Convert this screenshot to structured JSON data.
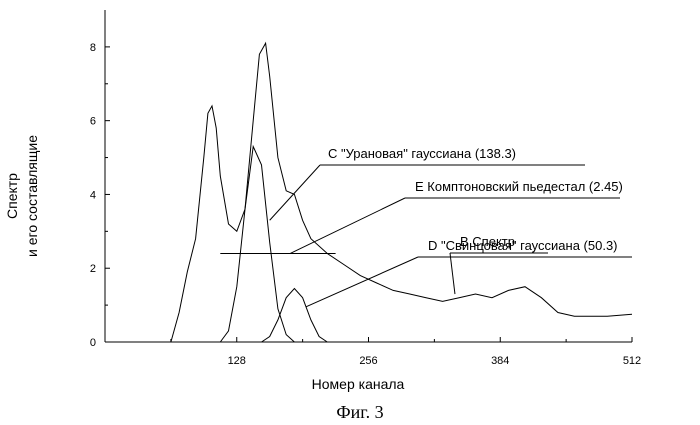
{
  "chart_data": {
    "type": "line",
    "xlabel": "Номер канала",
    "ylabel_lines": [
      "Спектр",
      "и его составлящие"
    ],
    "caption": "Фиг. 3",
    "xlim": [
      0,
      512
    ],
    "ylim": [
      0,
      9
    ],
    "x_ticks": [
      128,
      256,
      384,
      512
    ],
    "y_ticks": [
      0,
      2,
      4,
      6,
      8
    ],
    "grid": false,
    "series": [
      {
        "name": "В Спектр",
        "x": [
          64,
          72,
          80,
          88,
          96,
          100,
          104,
          108,
          112,
          120,
          128,
          136,
          144,
          150,
          156,
          160,
          168,
          176,
          184,
          192,
          200,
          216,
          232,
          248,
          264,
          280,
          296,
          312,
          328,
          344,
          360,
          376,
          392,
          408,
          424,
          440,
          456,
          472,
          488,
          512
        ],
        "y": [
          0,
          0.8,
          1.9,
          2.8,
          5.0,
          6.2,
          6.4,
          5.8,
          4.5,
          3.2,
          3.0,
          3.6,
          6.0,
          7.8,
          8.1,
          7.2,
          5.0,
          4.1,
          4.0,
          3.3,
          2.8,
          2.4,
          2.1,
          1.8,
          1.6,
          1.4,
          1.3,
          1.2,
          1.1,
          1.2,
          1.3,
          1.2,
          1.4,
          1.5,
          1.2,
          0.8,
          0.7,
          0.7,
          0.7,
          0.75
        ]
      },
      {
        "name": "С \"Урановая\" гауссиана (138.3)",
        "x": [
          112,
          120,
          128,
          136,
          144,
          152,
          160,
          168,
          176,
          184
        ],
        "y": [
          0,
          0.3,
          1.5,
          3.6,
          5.3,
          4.8,
          2.7,
          0.9,
          0.2,
          0
        ]
      },
      {
        "name": "D \"Свинцовая\" гауссиана (50.3)",
        "x": [
          152,
          160,
          168,
          176,
          184,
          192,
          200,
          208,
          216
        ],
        "y": [
          0,
          0.15,
          0.6,
          1.2,
          1.45,
          1.2,
          0.6,
          0.15,
          0
        ]
      },
      {
        "name": "Е Комптоновский пьедестал (2.45)",
        "x": [
          112,
          224
        ],
        "y": [
          2.4,
          2.4
        ]
      }
    ],
    "annotations": [
      {
        "text": "С \"Урановая\" гауссиана (138.3)",
        "pointer": [
          160,
          3.3
        ]
      },
      {
        "text": "Е Комптоновский пьедестал (2.45)",
        "pointer": [
          180,
          2.4
        ]
      },
      {
        "text": "D \"Свинцовая\" гауссиана (50.3)",
        "pointer": [
          195,
          0.95
        ]
      },
      {
        "text": "В Спектр",
        "pointer": [
          340,
          1.3
        ]
      }
    ]
  }
}
